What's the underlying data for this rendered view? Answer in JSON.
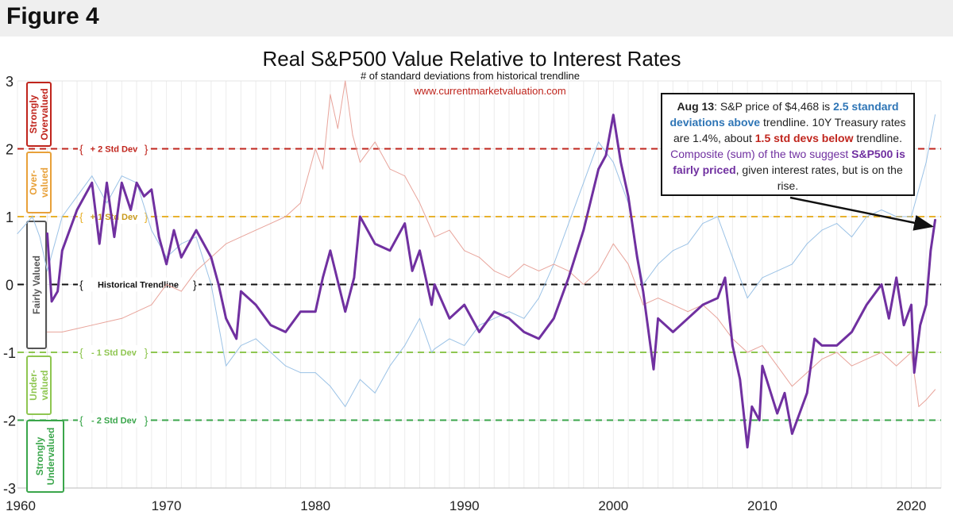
{
  "header": {
    "figure_label": "Figure 4"
  },
  "chart_data": {
    "type": "line",
    "title": "Real S&P500 Value Relative to Interest Rates",
    "subtitle": "# of standard deviations from historical trendline",
    "source": "www.currentmarketvaluation.com",
    "xlabel": "",
    "ylabel": "",
    "xlim": [
      1960,
      2022
    ],
    "ylim": [
      -3,
      3
    ],
    "x_ticks": [
      1960,
      1970,
      1980,
      1990,
      2000,
      2010,
      2020
    ],
    "y_ticks": [
      3,
      2,
      1,
      0,
      -1,
      -2,
      -3
    ],
    "y_tick_labels": [
      "3",
      "2",
      "1",
      "0",
      "-1",
      "-2",
      "-3"
    ],
    "grid": true,
    "reference_lines": [
      {
        "y": 2,
        "label": "+ 2 Std Dev",
        "color": "#c0251d"
      },
      {
        "y": 1,
        "label": "+ 1 Std Dev",
        "color": "#e8b22e"
      },
      {
        "y": 0,
        "label": "Historical Trendline",
        "color": "#111111"
      },
      {
        "y": -1,
        "label": "- 1 Std Dev",
        "color": "#8fc651"
      },
      {
        "y": -2,
        "label": "- 2 Std Dev",
        "color": "#3aa64b"
      }
    ],
    "zones": [
      {
        "label": "Strongly Overvalued",
        "lines": [
          "Strongly",
          "Overvalued"
        ],
        "color": "#c0251d"
      },
      {
        "label": "Over-valued",
        "lines": [
          "Over-",
          "valued"
        ],
        "color": "#e8a13a"
      },
      {
        "label": "Fairly Valued",
        "lines": [
          "Fairly Valued"
        ],
        "color": "#555555"
      },
      {
        "label": "Under-valued",
        "lines": [
          "Under-",
          "valued"
        ],
        "color": "#8fc651"
      },
      {
        "label": "Strongly Undervalued",
        "lines": [
          "Strongly",
          "Undervalued"
        ],
        "color": "#3aa64b"
      }
    ],
    "series": [
      {
        "color": "#9bc2e6",
        "width": 1,
        "x": [
          1960,
          1961,
          1961.5,
          1962,
          1962.5,
          1963,
          1964,
          1965,
          1966,
          1967,
          1968,
          1969,
          1970,
          1971,
          1972,
          1973,
          1974,
          1975,
          1976,
          1977,
          1978,
          1979,
          1980,
          1981,
          1982,
          1983,
          1984,
          1985,
          1986,
          1987,
          1987.8,
          1988,
          1989,
          1990,
          1991,
          1992,
          1993,
          1994,
          1995,
          1996,
          1997,
          1998,
          1999,
          2000,
          2001,
          2002,
          2003,
          2004,
          2005,
          2006,
          2007,
          2008,
          2009,
          2010,
          2011,
          2012,
          2013,
          2014,
          2015,
          2016,
          2017,
          2018,
          2019,
          2020,
          2021,
          2021.6
        ],
        "y": [
          0.75,
          1.0,
          0.7,
          0.2,
          0.6,
          1.0,
          1.3,
          1.6,
          1.2,
          1.6,
          1.5,
          0.8,
          0.4,
          0.6,
          0.7,
          0.0,
          -1.2,
          -0.9,
          -0.8,
          -1.0,
          -1.2,
          -1.3,
          -1.3,
          -1.5,
          -1.8,
          -1.4,
          -1.6,
          -1.2,
          -0.9,
          -0.5,
          -1.0,
          -0.95,
          -0.8,
          -0.9,
          -0.6,
          -0.5,
          -0.4,
          -0.5,
          -0.2,
          0.3,
          0.9,
          1.5,
          2.1,
          1.8,
          1.2,
          0.0,
          0.3,
          0.5,
          0.6,
          0.9,
          1.0,
          0.4,
          -0.2,
          0.1,
          0.2,
          0.3,
          0.6,
          0.8,
          0.9,
          0.7,
          1.0,
          1.1,
          1.0,
          1.0,
          1.8,
          2.5
        ]
      },
      {
        "color": "#e8a49b",
        "width": 1,
        "x": [
          1962,
          1963,
          1964,
          1965,
          1966,
          1967,
          1968,
          1969,
          1970,
          1971,
          1972,
          1973,
          1974,
          1975,
          1976,
          1977,
          1978,
          1979,
          1980,
          1980.5,
          1981,
          1981.5,
          1982,
          1982.5,
          1983,
          1984,
          1985,
          1986,
          1987,
          1988,
          1989,
          1990,
          1991,
          1992,
          1993,
          1994,
          1995,
          1996,
          1997,
          1998,
          1999,
          2000,
          2001,
          2002,
          2003,
          2004,
          2005,
          2006,
          2007,
          2008,
          2009,
          2010,
          2011,
          2012,
          2013,
          2014,
          2015,
          2016,
          2017,
          2018,
          2019,
          2020,
          2020.5,
          2021,
          2021.6
        ],
        "y": [
          -0.7,
          -0.7,
          -0.65,
          -0.6,
          -0.55,
          -0.5,
          -0.4,
          -0.3,
          0.0,
          -0.1,
          0.2,
          0.4,
          0.6,
          0.7,
          0.8,
          0.9,
          1.0,
          1.2,
          2.0,
          1.7,
          2.8,
          2.3,
          3.0,
          2.2,
          1.8,
          2.1,
          1.7,
          1.6,
          1.2,
          0.7,
          0.8,
          0.5,
          0.4,
          0.2,
          0.1,
          0.3,
          0.2,
          0.3,
          0.2,
          0.0,
          0.2,
          0.6,
          0.3,
          -0.3,
          -0.2,
          -0.3,
          -0.4,
          -0.3,
          -0.5,
          -0.8,
          -1.0,
          -0.9,
          -1.2,
          -1.5,
          -1.3,
          -1.1,
          -1.0,
          -1.2,
          -1.1,
          -1.0,
          -1.2,
          -1.0,
          -1.8,
          -1.7,
          -1.55
        ]
      },
      {
        "color": "#7030a0",
        "width": 3,
        "x": [
          1962,
          1962.3,
          1962.7,
          1963,
          1964,
          1965,
          1965.5,
          1966,
          1966.5,
          1967,
          1967.6,
          1968,
          1968.5,
          1969,
          1969.5,
          1970,
          1970.5,
          1971,
          1972,
          1973,
          1973.5,
          1974,
          1974.7,
          1975,
          1976,
          1977,
          1978,
          1979,
          1980,
          1980.5,
          1981,
          1982,
          1982.6,
          1983,
          1984,
          1985,
          1986,
          1986.5,
          1987,
          1987.8,
          1988,
          1989,
          1990,
          1991,
          1992,
          1993,
          1994,
          1995,
          1996,
          1997,
          1998,
          1999,
          1999.5,
          2000,
          2000.5,
          2001,
          2001.6,
          2002,
          2002.7,
          2003,
          2004,
          2005,
          2006,
          2007,
          2007.5,
          2008,
          2008.5,
          2009,
          2009.3,
          2009.8,
          2010,
          2011,
          2011.5,
          2012,
          2013,
          2013.5,
          2014,
          2015,
          2016,
          2017,
          2018,
          2018.5,
          2019,
          2019.5,
          2020,
          2020.2,
          2020.6,
          2021,
          2021.3,
          2021.6
        ],
        "y": [
          0.75,
          -0.25,
          -0.1,
          0.5,
          1.1,
          1.5,
          0.6,
          1.5,
          0.7,
          1.5,
          1.1,
          1.5,
          1.3,
          1.4,
          0.7,
          0.3,
          0.8,
          0.4,
          0.8,
          0.4,
          0.0,
          -0.5,
          -0.8,
          -0.1,
          -0.3,
          -0.6,
          -0.7,
          -0.4,
          -0.4,
          0.1,
          0.5,
          -0.4,
          0.1,
          1.0,
          0.6,
          0.5,
          0.9,
          0.2,
          0.5,
          -0.3,
          0.0,
          -0.5,
          -0.3,
          -0.7,
          -0.4,
          -0.5,
          -0.7,
          -0.8,
          -0.5,
          0.1,
          0.8,
          1.7,
          1.9,
          2.5,
          1.8,
          1.3,
          0.4,
          -0.1,
          -1.25,
          -0.5,
          -0.7,
          -0.5,
          -0.3,
          -0.2,
          0.1,
          -0.9,
          -1.4,
          -2.4,
          -1.8,
          -2.0,
          -1.2,
          -1.9,
          -1.6,
          -2.2,
          -1.6,
          -0.8,
          -0.9,
          -0.9,
          -0.7,
          -0.3,
          0.0,
          -0.5,
          0.1,
          -0.6,
          -0.3,
          -1.3,
          -0.6,
          -0.3,
          0.5,
          0.95
        ]
      }
    ],
    "annotation": {
      "parts": [
        {
          "text": "Aug 13",
          "bold": true,
          "color": "#222222"
        },
        {
          "text": ": S&P price of $4,468 is ",
          "bold": false,
          "color": "#222222"
        },
        {
          "text": "2.5 standard deviations above",
          "bold": true,
          "color": "#2e75b6"
        },
        {
          "text": " trendline. 10Y Treasury rates are 1.4%, about ",
          "bold": false,
          "color": "#222222"
        },
        {
          "text": "1.5 std devs below",
          "bold": true,
          "color": "#c0251d"
        },
        {
          "text": " trendline. ",
          "bold": false,
          "color": "#222222"
        },
        {
          "text": "Composite (sum) of the two suggest ",
          "bold": false,
          "color": "#7030a0"
        },
        {
          "text": "S&P500 is fairly priced",
          "bold": true,
          "color": "#7030a0"
        },
        {
          "text": ", given interest rates, but is on the rise.",
          "bold": false,
          "color": "#222222"
        }
      ],
      "points_to": {
        "x": 2021.6,
        "y": 0.95
      }
    }
  }
}
